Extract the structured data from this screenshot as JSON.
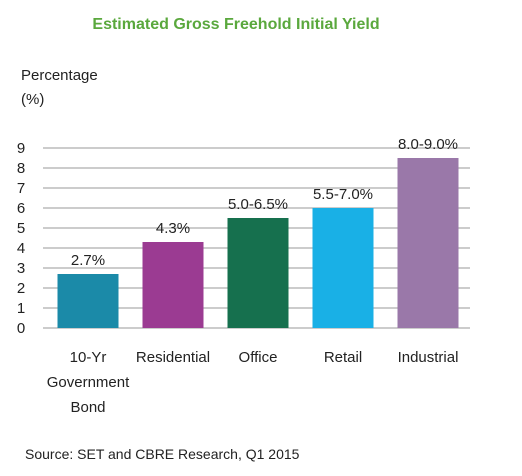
{
  "chart_data": {
    "type": "bar",
    "title": "Estimated Gross Freehold Initial Yield",
    "ylabel": [
      "Percentage",
      "(%)"
    ],
    "ylim": [
      0,
      9
    ],
    "yticks": [
      "0",
      "1",
      "2",
      "3",
      "4",
      "5",
      "6",
      "7",
      "8",
      "9"
    ],
    "grid": true,
    "categories": [
      [
        "10-Yr",
        "Government",
        "Bond"
      ],
      [
        "Residential"
      ],
      [
        "Office"
      ],
      [
        "Retail"
      ],
      [
        "Industrial"
      ]
    ],
    "values": [
      2.7,
      4.3,
      5.5,
      6.0,
      8.5
    ],
    "data_labels": [
      "2.7%",
      "4.3%",
      "5.0-6.5%",
      "5.5-7.0%",
      "8.0-9.0%"
    ],
    "colors": [
      "#1b8aa8",
      "#9b3b92",
      "#16704e",
      "#19b0e6",
      "#9a78a9"
    ],
    "source": "Source: SET and CBRE Research, Q1 2015"
  }
}
